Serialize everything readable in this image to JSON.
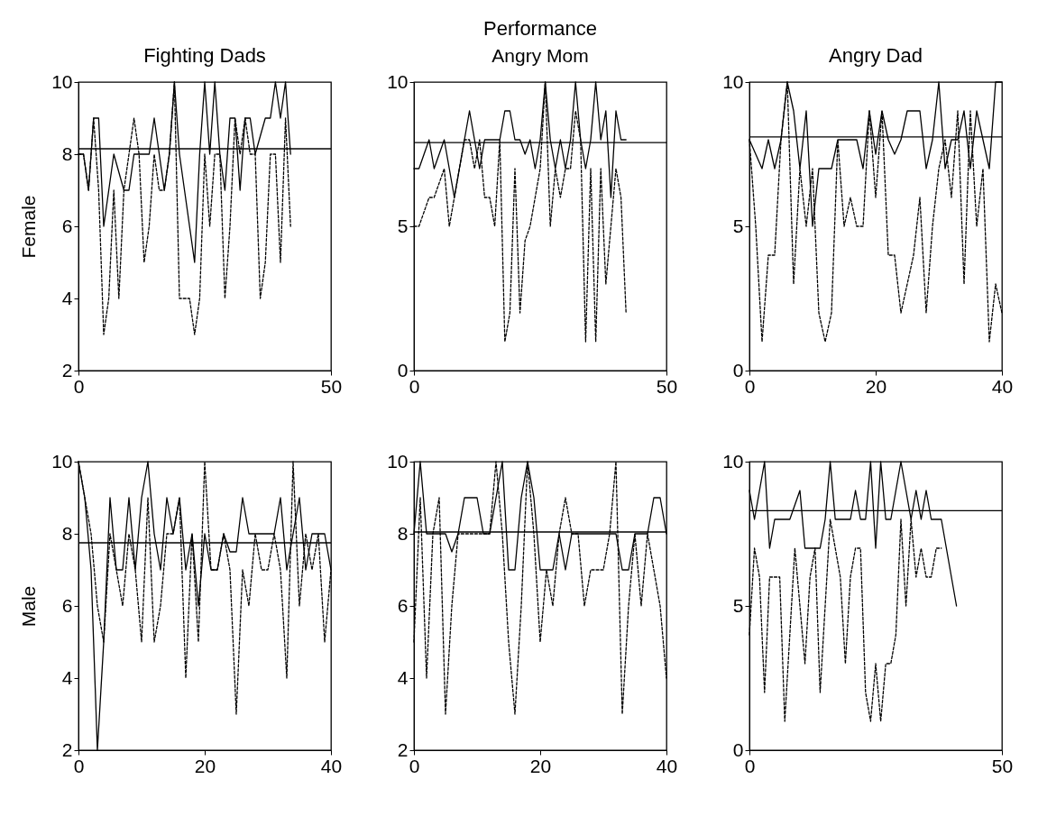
{
  "chart_data": [
    {
      "type": "line",
      "title": "Fighting Dads",
      "ylabel": "Female",
      "x": [
        0,
        1,
        2,
        3,
        4,
        5,
        6,
        7,
        8,
        9,
        10,
        11,
        12,
        13,
        14,
        15,
        16,
        17,
        18,
        19,
        20,
        21,
        22,
        23,
        24,
        25,
        26,
        27,
        28,
        29,
        30,
        31,
        32,
        33,
        34,
        35,
        36,
        37,
        38,
        39,
        40,
        41,
        42
      ],
      "xlim": [
        0,
        50
      ],
      "xticks": [
        0,
        50
      ],
      "ylim": [
        2,
        10
      ],
      "yticks": [
        2,
        4,
        6,
        8,
        10
      ],
      "grid": false,
      "series": [
        {
          "color": "#000000",
          "line_style": "solid",
          "values": [
            8,
            8,
            7,
            9,
            9,
            6,
            7,
            8,
            7.5,
            7,
            7,
            8,
            8,
            8,
            8,
            9,
            8,
            7,
            8,
            10,
            8,
            7,
            6,
            5,
            8,
            10,
            8,
            10,
            8,
            7,
            9,
            9,
            7,
            9,
            9,
            8,
            8.5,
            9,
            9,
            10,
            9,
            10,
            8
          ]
        },
        {
          "color": "#000000",
          "line_style": "dashed",
          "values": [
            8,
            8,
            7,
            9,
            7,
            3,
            4,
            7,
            4,
            7,
            8,
            9,
            8,
            5,
            6,
            8,
            7,
            7,
            8,
            10,
            4,
            4,
            4,
            3,
            4,
            8,
            6,
            8,
            8,
            4,
            6,
            9,
            8,
            9,
            8,
            8,
            4,
            5,
            8,
            8,
            5,
            9,
            6
          ]
        }
      ],
      "ref_lines": [
        {
          "axis": "y",
          "value": 8.15
        }
      ]
    },
    {
      "type": "line",
      "title": "Performance",
      "subtitle": "Angry Mom",
      "x": [
        0,
        1,
        2,
        3,
        4,
        5,
        6,
        7,
        8,
        9,
        10,
        11,
        12,
        13,
        14,
        15,
        16,
        17,
        18,
        19,
        20,
        21,
        22,
        23,
        24,
        25,
        26,
        27,
        28,
        29,
        30,
        31,
        32,
        33,
        34,
        35,
        36,
        37,
        38,
        39,
        40,
        41,
        42
      ],
      "xlim": [
        0,
        50
      ],
      "xticks": [
        0,
        50
      ],
      "ylim": [
        0,
        10
      ],
      "yticks": [
        0,
        5,
        10
      ],
      "grid": false,
      "series": [
        {
          "color": "#000000",
          "line_style": "solid",
          "values": [
            7,
            7,
            7.5,
            8,
            7,
            7.5,
            8,
            7,
            6,
            7,
            8,
            9,
            8,
            7,
            8,
            8,
            8,
            8,
            9,
            9,
            8,
            8,
            7.5,
            8,
            7,
            8,
            10,
            8,
            7,
            8,
            7,
            8,
            10,
            8,
            7,
            8,
            10,
            8,
            9,
            6,
            9,
            8,
            8
          ]
        },
        {
          "color": "#000000",
          "line_style": "dashed",
          "values": [
            5,
            5,
            5.5,
            6,
            6,
            6.5,
            7,
            5,
            6,
            7,
            8,
            8,
            7,
            8,
            6,
            6,
            5,
            8,
            1,
            2,
            7,
            2,
            4.5,
            5,
            6,
            7,
            10,
            5,
            7,
            6,
            7,
            7,
            9,
            8,
            1,
            7,
            1,
            7,
            3,
            5,
            7,
            6,
            2
          ]
        }
      ],
      "ref_lines": [
        {
          "axis": "y",
          "value": 7.9
        }
      ]
    },
    {
      "type": "line",
      "title": "Angry Dad",
      "x": [
        0,
        1,
        2,
        3,
        4,
        5,
        6,
        7,
        8,
        9,
        10,
        11,
        12,
        13,
        14,
        15,
        16,
        17,
        18,
        19,
        20,
        21,
        22,
        23,
        24,
        25,
        26,
        27,
        28,
        29,
        30,
        31,
        32,
        33,
        34,
        35,
        36,
        37,
        38,
        39,
        40
      ],
      "xlim": [
        0,
        40
      ],
      "xticks": [
        0,
        20,
        40
      ],
      "ylim": [
        0,
        10
      ],
      "yticks": [
        0,
        5,
        10
      ],
      "grid": false,
      "series": [
        {
          "color": "#000000",
          "line_style": "solid",
          "values": [
            8,
            7.5,
            7,
            8,
            7,
            8,
            10,
            9,
            7,
            9,
            5,
            7,
            7,
            7,
            8,
            8,
            8,
            8,
            7,
            9,
            7.5,
            9,
            8,
            7.5,
            8,
            9,
            9,
            9,
            7,
            8,
            10,
            7,
            8,
            8,
            9,
            7,
            9,
            8,
            7,
            10,
            10
          ]
        },
        {
          "color": "#000000",
          "line_style": "dashed",
          "values": [
            8,
            5,
            1,
            4,
            4,
            8,
            10,
            3,
            7,
            5,
            7,
            2,
            1,
            2,
            8,
            5,
            6,
            5,
            5,
            9,
            6,
            9,
            4,
            4,
            2,
            3,
            4,
            6,
            2,
            5,
            7,
            8,
            6,
            9,
            3,
            9,
            5,
            7,
            1,
            3,
            2
          ]
        }
      ],
      "ref_lines": [
        {
          "axis": "y",
          "value": 8.1
        }
      ]
    },
    {
      "type": "line",
      "ylabel": "Male",
      "x": [
        0,
        1,
        2,
        3,
        4,
        5,
        6,
        7,
        8,
        9,
        10,
        11,
        12,
        13,
        14,
        15,
        16,
        17,
        18,
        19,
        20,
        21,
        22,
        23,
        24,
        25,
        26,
        27,
        28,
        29,
        30,
        31,
        32,
        33,
        34,
        35,
        36,
        37,
        38,
        39,
        40
      ],
      "xlim": [
        0,
        40
      ],
      "xticks": [
        0,
        20,
        40
      ],
      "ylim": [
        2,
        10
      ],
      "yticks": [
        2,
        4,
        6,
        8,
        10
      ],
      "grid": false,
      "series": [
        {
          "color": "#000000",
          "line_style": "solid",
          "values": [
            10,
            9,
            7,
            2,
            5,
            9,
            7,
            7,
            9,
            7,
            9,
            10,
            8,
            7,
            9,
            8,
            9,
            7,
            8,
            6,
            8,
            7,
            7,
            8,
            7.5,
            7.5,
            9,
            8,
            8,
            8,
            8,
            8,
            9,
            7,
            8,
            9,
            7,
            8,
            8,
            8,
            7
          ]
        },
        {
          "color": "#000000",
          "line_style": "dashed",
          "values": [
            10,
            9,
            8,
            6,
            5,
            8,
            7,
            6,
            8,
            7,
            5,
            9,
            5,
            6,
            8,
            8,
            9,
            4,
            8,
            5,
            10,
            7,
            7,
            8,
            7,
            3,
            7,
            6,
            8,
            7,
            7,
            8,
            7,
            4,
            10,
            6,
            8,
            7,
            8,
            5,
            7
          ]
        }
      ],
      "ref_lines": [
        {
          "axis": "y",
          "value": 7.75
        }
      ]
    },
    {
      "type": "line",
      "x": [
        0,
        1,
        2,
        3,
        4,
        5,
        6,
        7,
        8,
        9,
        10,
        11,
        12,
        13,
        14,
        15,
        16,
        17,
        18,
        19,
        20,
        21,
        22,
        23,
        24,
        25,
        26,
        27,
        28,
        29,
        30,
        31,
        32,
        33,
        34,
        35,
        36,
        37,
        38,
        39,
        40
      ],
      "xlim": [
        0,
        40
      ],
      "xticks": [
        0,
        20,
        40
      ],
      "ylim": [
        2,
        10
      ],
      "yticks": [
        2,
        4,
        6,
        8,
        10
      ],
      "grid": false,
      "series": [
        {
          "color": "#000000",
          "line_style": "solid",
          "values": [
            8,
            10,
            8,
            8,
            8,
            8,
            7.5,
            8,
            9,
            9,
            9,
            8,
            8,
            9,
            10,
            7,
            7,
            9,
            10,
            9,
            7,
            7,
            7,
            8,
            7,
            8,
            8,
            8,
            8,
            8,
            8,
            8,
            8,
            7,
            7,
            8,
            8,
            8,
            9,
            9,
            8
          ]
        },
        {
          "color": "#000000",
          "line_style": "dashed",
          "values": [
            5,
            9,
            4,
            8,
            9,
            3,
            6,
            8,
            8,
            8,
            8,
            8,
            8,
            10,
            8,
            5,
            3,
            6,
            10,
            8,
            5,
            7,
            6,
            8,
            9,
            8,
            8,
            6,
            7,
            7,
            7,
            8,
            10,
            3,
            6,
            8,
            6,
            8,
            7,
            6,
            4
          ]
        }
      ],
      "ref_lines": [
        {
          "axis": "y",
          "value": 8.05
        }
      ]
    },
    {
      "type": "line",
      "x": [
        0,
        1,
        2,
        3,
        4,
        5,
        6,
        7,
        8,
        9,
        10,
        11,
        12,
        13,
        14,
        15,
        16,
        17,
        18,
        19,
        20,
        21,
        22,
        23,
        24,
        25,
        26,
        27,
        28,
        29,
        30,
        31,
        32,
        33,
        34,
        35,
        36,
        37,
        38,
        39,
        40,
        41
      ],
      "xlim": [
        0,
        50
      ],
      "xticks": [
        0,
        50
      ],
      "ylim": [
        0,
        10
      ],
      "yticks": [
        0,
        5,
        10
      ],
      "grid": false,
      "series": [
        {
          "color": "#000000",
          "line_style": "solid",
          "values": [
            9,
            8,
            9,
            10,
            7,
            8,
            8,
            8,
            8,
            8.5,
            9,
            7,
            7,
            7,
            7,
            8,
            10,
            8,
            8,
            8,
            8,
            9,
            8,
            8,
            10,
            7,
            10,
            8,
            8,
            9,
            10,
            9,
            8,
            9,
            8,
            9,
            8,
            8,
            8,
            7,
            6,
            5
          ]
        },
        {
          "color": "#000000",
          "line_style": "dashed",
          "values": [
            4,
            7,
            6,
            2,
            6,
            6,
            6,
            1,
            4,
            7,
            5,
            3,
            6,
            7,
            2,
            5,
            8,
            7,
            6,
            3,
            6,
            7,
            7,
            2,
            1,
            3,
            1,
            3,
            3,
            4,
            8,
            5,
            8,
            6,
            7,
            6,
            6,
            7,
            7,
            null,
            null,
            null
          ]
        }
      ],
      "ref_lines": [
        {
          "axis": "y",
          "value": 8.3
        }
      ]
    }
  ]
}
